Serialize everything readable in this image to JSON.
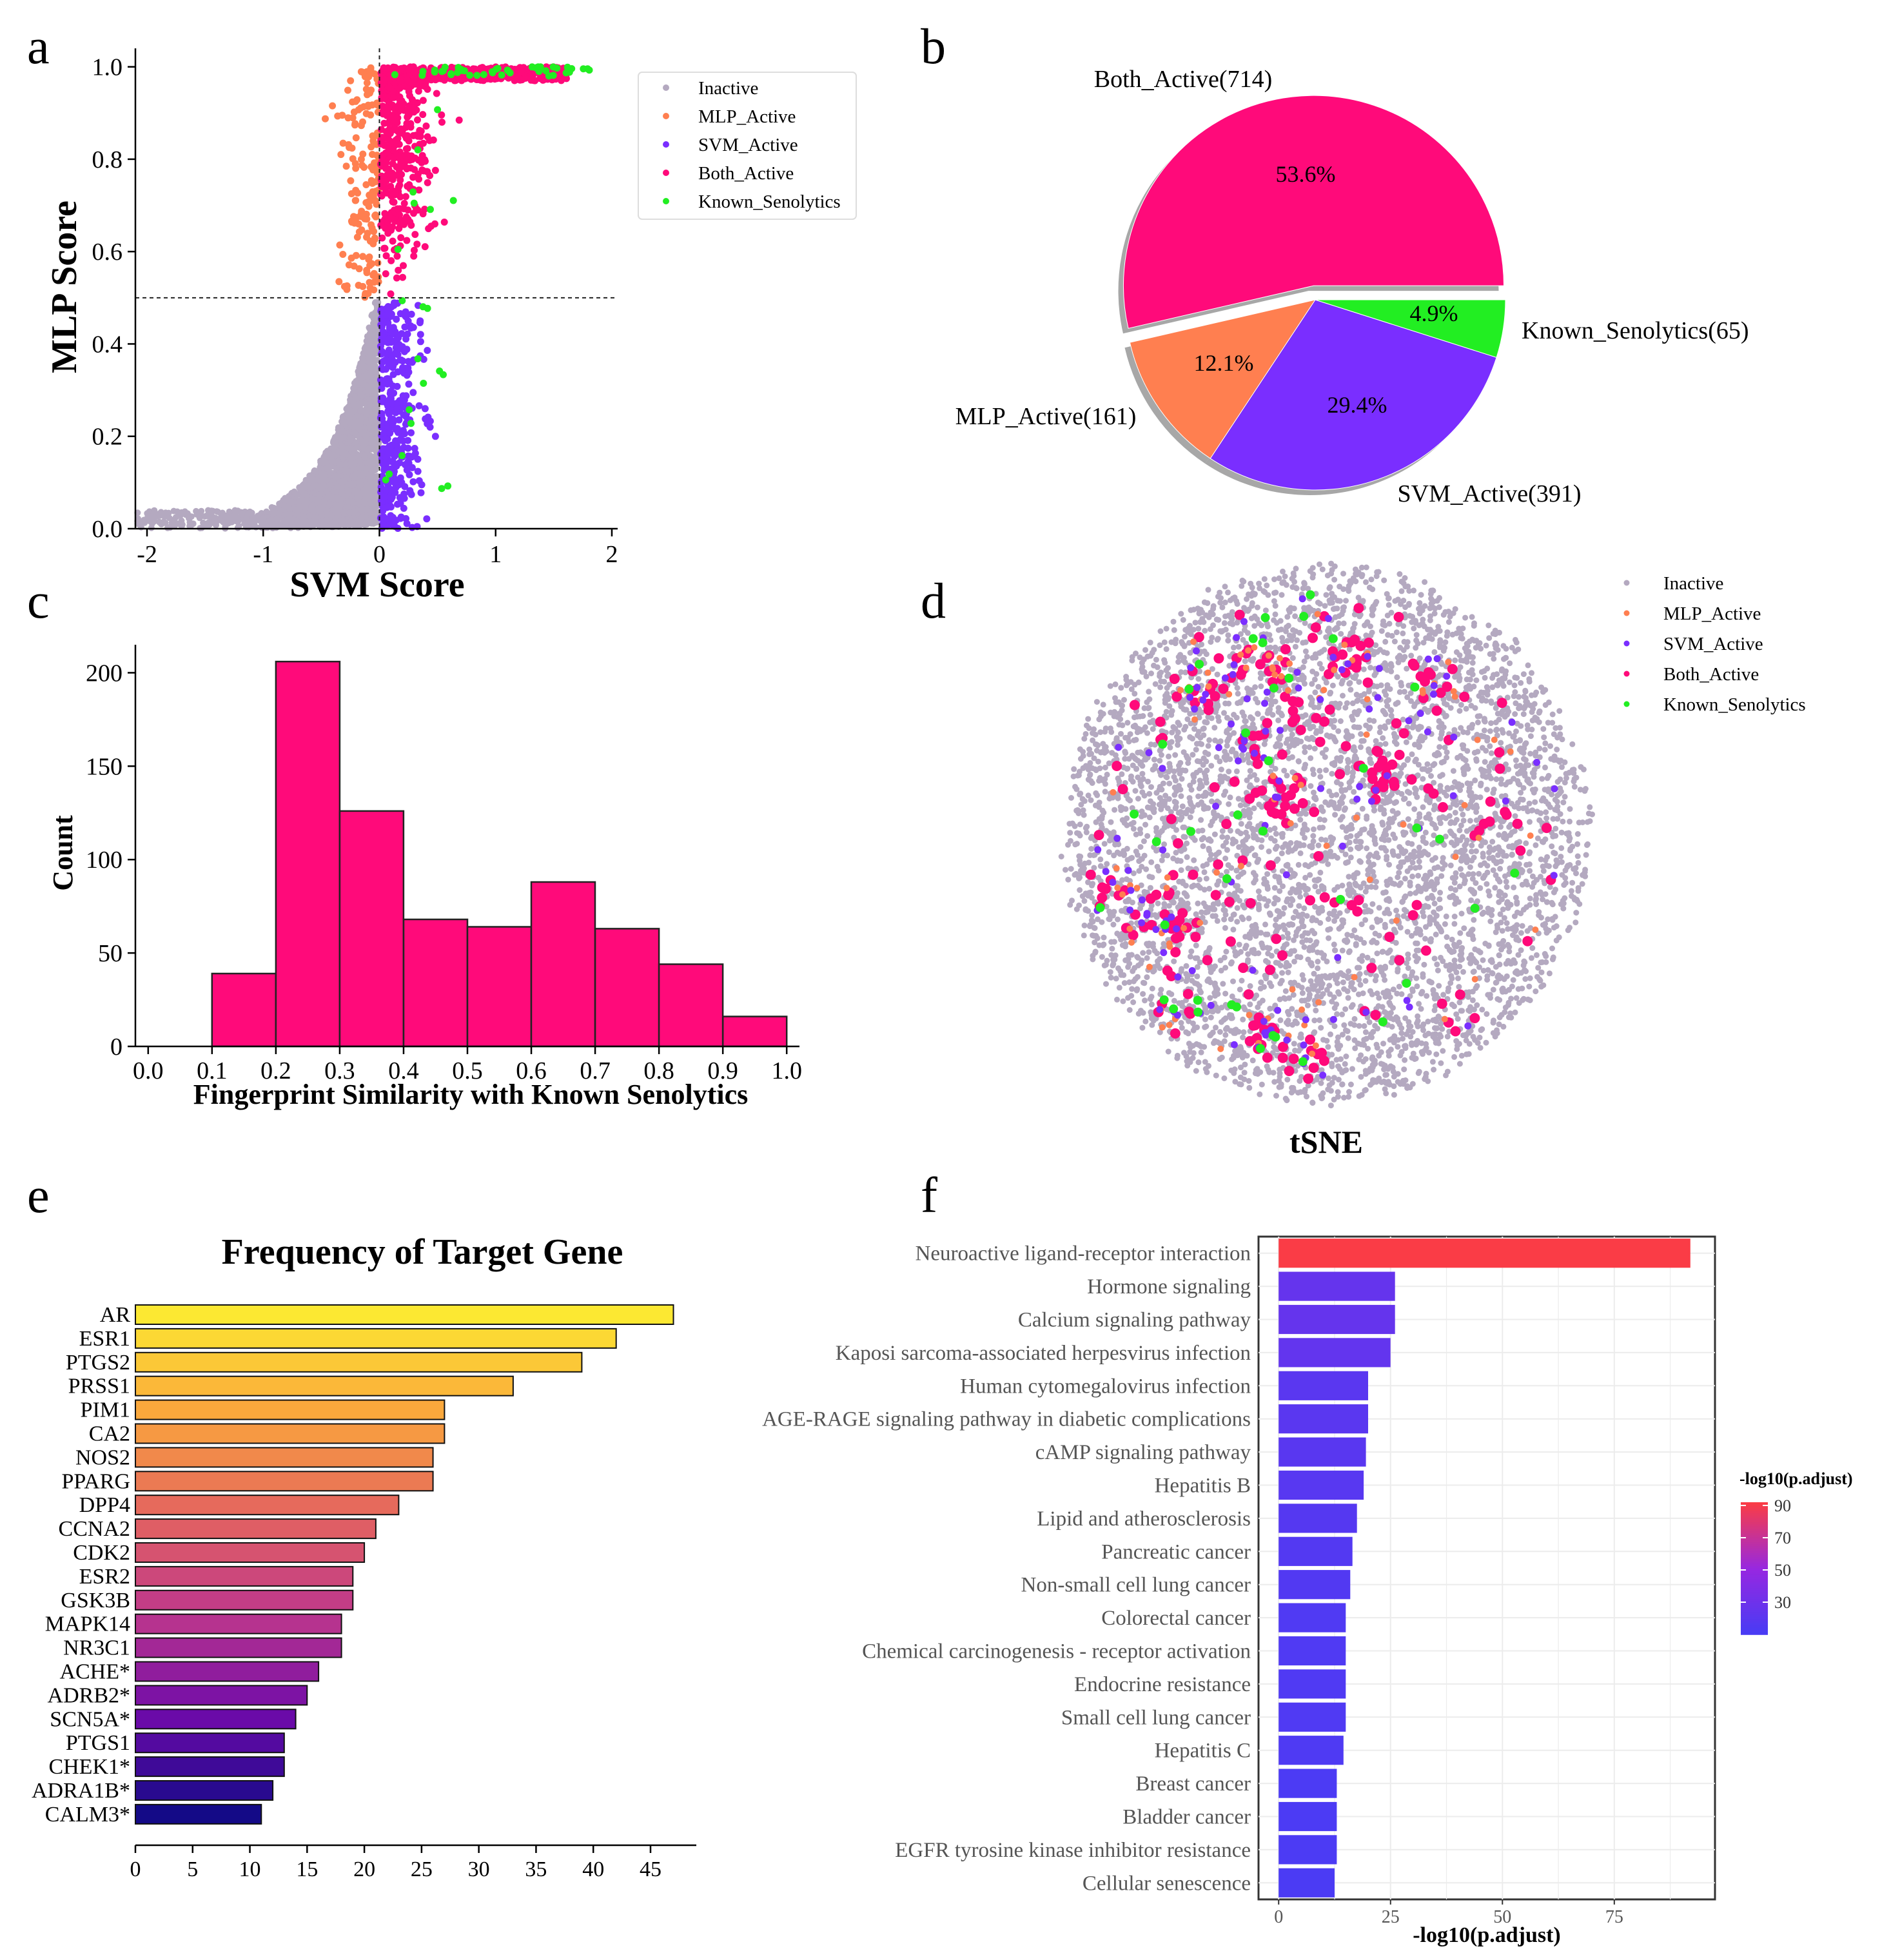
{
  "panels": {
    "a": "a",
    "b": "b",
    "c": "c",
    "d": "d",
    "e": "e",
    "f": "f"
  },
  "colors": {
    "inactive": "#b4a9c0",
    "mlp": "#ff7f50",
    "svm": "#7a2eff",
    "both": "#ff0a7a",
    "known": "#22ee22",
    "hist": "#ff0a7a"
  },
  "chart_data": [
    {
      "id": "a",
      "type": "scatter",
      "xlabel": "SVM Score",
      "ylabel": "MLP Score",
      "xlim": [
        -2.1,
        2.05
      ],
      "ylim": [
        0,
        1.04
      ],
      "xticks": [
        "-2",
        "-1",
        "0",
        "1",
        "2"
      ],
      "xtick_values": [
        -2,
        -1,
        0,
        1,
        2
      ],
      "yticks": [
        "0.0",
        "0.2",
        "0.4",
        "0.6",
        "0.8",
        "1.0"
      ],
      "ytick_values": [
        0,
        0.2,
        0.4,
        0.6,
        0.8,
        1.0
      ],
      "thresholds": {
        "x": 0,
        "y": 0.5
      },
      "legend": [
        "Inactive",
        "MLP_Active",
        "SVM_Active",
        "Both_Active",
        "Known_Senolytics"
      ]
    },
    {
      "id": "b",
      "type": "pie",
      "slices": [
        {
          "label": "Both_Active(714)",
          "pct": "53.6%",
          "value": 53.6,
          "color": "#ff0a7a",
          "explode": true
        },
        {
          "label": "Known_Senolytics(65)",
          "pct": "4.9%",
          "value": 4.9,
          "color": "#22ee22",
          "explode": false
        },
        {
          "label": "SVM_Active(391)",
          "pct": "29.4%",
          "value": 29.4,
          "color": "#7a2eff",
          "explode": false
        },
        {
          "label": "MLP_Active(161)",
          "pct": "12.1%",
          "value": 12.1,
          "color": "#ff7f50",
          "explode": false
        }
      ]
    },
    {
      "id": "c",
      "type": "bar",
      "xlabel": "Fingerprint Similarity with Known Senolytics",
      "ylabel": "Count",
      "bins": [
        [
          0.1,
          0.2
        ],
        [
          0.2,
          0.3
        ],
        [
          0.3,
          0.4
        ],
        [
          0.4,
          0.5
        ],
        [
          0.5,
          0.6
        ],
        [
          0.6,
          0.7
        ],
        [
          0.7,
          0.8
        ],
        [
          0.8,
          0.9
        ],
        [
          0.9,
          1.0
        ]
      ],
      "values": [
        39,
        206,
        126,
        68,
        64,
        88,
        63,
        44,
        16
      ],
      "xlim": [
        -0.02,
        1.02
      ],
      "ylim": [
        0,
        215
      ],
      "xticks": [
        "0.0",
        "0.1",
        "0.2",
        "0.3",
        "0.4",
        "0.5",
        "0.6",
        "0.7",
        "0.8",
        "0.9",
        "1.0"
      ],
      "yticks": [
        "0",
        "50",
        "100",
        "150",
        "200"
      ],
      "ytick_values": [
        0,
        50,
        100,
        150,
        200
      ]
    },
    {
      "id": "d",
      "type": "scatter",
      "xlabel": "tSNE",
      "legend": [
        "Inactive",
        "MLP_Active",
        "SVM_Active",
        "Both_Active",
        "Known_Senolytics"
      ]
    },
    {
      "id": "e",
      "type": "bar",
      "orientation": "horizontal",
      "title": "Frequency of Target Gene",
      "categories": [
        "AR",
        "ESR1",
        "PTGS2",
        "PRSS1",
        "PIM1",
        "CA2",
        "NOS2",
        "PPARG",
        "DPP4",
        "CCNA2",
        "CDK2",
        "ESR2",
        "GSK3B",
        "MAPK14",
        "NR3C1",
        "ACHE*",
        "ADRB2*",
        "SCN5A*",
        "PTGS1",
        "CHEK1*",
        "ADRA1B*",
        "CALM3*"
      ],
      "values": [
        47,
        42,
        39,
        33,
        27,
        27,
        26,
        26,
        23,
        21,
        20,
        19,
        19,
        18,
        18,
        16,
        15,
        14,
        13,
        13,
        12,
        11
      ],
      "xlim": [
        0,
        49
      ],
      "xticks": [
        "0",
        "5",
        "10",
        "15",
        "20",
        "25",
        "30",
        "35",
        "40",
        "45"
      ],
      "xtick_values": [
        0,
        5,
        10,
        15,
        20,
        25,
        30,
        35,
        40,
        45
      ]
    },
    {
      "id": "f",
      "type": "bar",
      "orientation": "horizontal",
      "xlabel": "-log10(p.adjust)",
      "categories": [
        "Neuroactive ligand-receptor interaction",
        "Hormone signaling",
        "Calcium signaling pathway",
        "Kaposi sarcoma-associated herpesvirus infection",
        "Human cytomegalovirus infection",
        "AGE-RAGE signaling pathway in diabetic complications",
        "cAMP signaling pathway",
        "Hepatitis B",
        "Lipid and atherosclerosis",
        "Pancreatic cancer",
        "Non-small cell lung cancer",
        "Colorectal cancer",
        "Chemical carcinogenesis - receptor activation",
        "Endocrine resistance",
        "Small cell lung cancer",
        "Hepatitis C",
        "Breast cancer",
        "Bladder cancer",
        "EGFR tyrosine kinase inhibitor resistance",
        "Cellular senescence"
      ],
      "values": [
        92,
        26,
        26,
        25,
        20,
        20,
        19.5,
        19,
        17.5,
        16.5,
        16,
        15,
        15,
        15,
        15,
        14.5,
        13,
        13,
        13,
        12.5
      ],
      "xlim": [
        -4.5,
        97.5
      ],
      "xticks": [
        "0",
        "25",
        "50",
        "75"
      ],
      "xtick_values": [
        0,
        25,
        50,
        75
      ],
      "colorbar": {
        "title": "-log10(p.adjust)",
        "ticks": [
          "90",
          "70",
          "50",
          "30"
        ],
        "tick_values": [
          90,
          70,
          50,
          30
        ],
        "range": [
          10,
          92
        ]
      }
    }
  ]
}
